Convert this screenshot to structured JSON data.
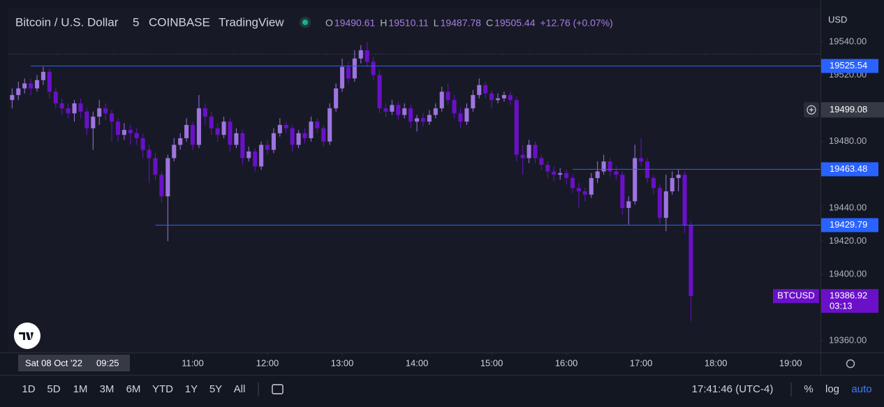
{
  "header": {
    "symbol": "Bitcoin / U.S. Dollar",
    "interval": "5",
    "exchange": "COINBASE",
    "source": "TradingView",
    "ohlc": [
      {
        "letter": "O",
        "text": "19490.61"
      },
      {
        "letter": "H",
        "text": "19510.11"
      },
      {
        "letter": "L",
        "text": "19487.78"
      },
      {
        "letter": "C",
        "text": "19505.44"
      }
    ],
    "change": "+12.76 (+0.07%)",
    "currency": "USD"
  },
  "chart_data": {
    "type": "candlestick",
    "up_color": "#9f74e0",
    "down_color": "#6a10c8",
    "x": [
      515,
      520,
      525,
      530,
      535,
      540,
      545,
      550,
      555,
      560,
      565,
      570,
      575,
      580,
      585,
      590,
      595,
      600,
      605,
      610,
      615,
      620,
      625,
      630,
      635,
      640,
      645,
      650,
      655,
      660,
      665,
      670,
      675,
      680,
      685,
      690,
      695,
      700,
      705,
      710,
      715,
      720,
      725,
      730,
      735,
      740,
      745,
      750,
      755,
      760,
      765,
      770,
      775,
      780,
      785,
      790,
      795,
      800,
      805,
      810,
      815,
      820,
      825,
      830,
      835,
      840,
      845,
      850,
      855,
      860,
      865,
      870,
      875,
      880,
      885,
      890,
      895,
      900,
      905,
      910,
      915,
      920,
      925,
      930,
      935,
      940,
      945,
      950,
      955,
      960,
      965,
      970,
      975,
      980,
      985,
      990,
      995,
      1000,
      1005,
      1010,
      1015,
      1020,
      1025,
      1030,
      1035,
      1040,
      1045,
      1050,
      1055,
      1060
    ],
    "open": [
      19505,
      19508,
      19512,
      19515,
      19512,
      19517,
      19522,
      19510,
      19503,
      19500,
      19497,
      19503,
      19498,
      19488,
      19495,
      19500,
      19497,
      19492,
      19484,
      19487,
      19485,
      19482,
      19475,
      19470,
      19460,
      19447,
      19470,
      19478,
      19482,
      19490,
      19478,
      19500,
      19495,
      19488,
      19484,
      19492,
      19478,
      19485,
      19470,
      19474,
      19465,
      19478,
      19475,
      19485,
      19490,
      19488,
      19478,
      19485,
      19482,
      19492,
      19488,
      19480,
      19500,
      19512,
      19525,
      19518,
      19530,
      19535,
      19528,
      19520,
      19500,
      19498,
      19502,
      19496,
      19500,
      19492,
      19494,
      19492,
      19496,
      19500,
      19510,
      19505,
      19497,
      19492,
      19500,
      19508,
      19514,
      19509,
      19505,
      19506,
      19508,
      19505,
      19472,
      19470,
      19478,
      19470,
      19466,
      19462,
      19460,
      19461,
      19458,
      19452,
      19450,
      19448,
      19458,
      19462,
      19468,
      19462,
      19460,
      19440,
      19444,
      19470,
      19468,
      19458,
      19452,
      19434,
      19450,
      19458,
      19460,
      19429.79
    ],
    "high": [
      19512,
      19516,
      19518,
      19518,
      19520,
      19525,
      19524,
      19512,
      19506,
      19503,
      19505,
      19506,
      19500,
      19498,
      19505,
      19503,
      19499,
      19494,
      19491,
      19490,
      19488,
      19485,
      19478,
      19473,
      19462,
      19472,
      19482,
      19485,
      19494,
      19492,
      19508,
      19503,
      19498,
      19491,
      19495,
      19494,
      19488,
      19487,
      19477,
      19476,
      19480,
      19481,
      19488,
      19494,
      19492,
      19490,
      19487,
      19488,
      19495,
      19494,
      19490,
      19503,
      19515,
      19530,
      19528,
      19535,
      19538,
      19540,
      19531,
      19523,
      19503,
      19505,
      19504,
      19503,
      19502,
      19496,
      19497,
      19499,
      19503,
      19513,
      19515,
      19508,
      19500,
      19503,
      19511,
      19518,
      19516,
      19511,
      19509,
      19510,
      19510,
      19507,
      19478,
      19481,
      19480,
      19472,
      19468,
      19465,
      19464,
      19463,
      19460,
      19455,
      19452,
      19461,
      19468,
      19472,
      19470,
      19465,
      19462,
      19447,
      19478,
      19482,
      19470,
      19460,
      19454,
      19460,
      19462,
      19463,
      19462,
      19432
    ],
    "low": [
      19500,
      19505,
      19509,
      19508,
      19510,
      19514,
      19506,
      19500,
      19496,
      19494,
      19492,
      19494,
      19484,
      19475,
      19490,
      19493,
      19480,
      19480,
      19481,
      19478,
      19478,
      19470,
      19455,
      19457,
      19443,
      19420,
      19468,
      19475,
      19480,
      19475,
      19476,
      19490,
      19484,
      19480,
      19482,
      19474,
      19476,
      19466,
      19468,
      19462,
      19463,
      19472,
      19473,
      19483,
      19485,
      19474,
      19476,
      19479,
      19480,
      19485,
      19477,
      19478,
      19498,
      19510,
      19515,
      19516,
      19527,
      19525,
      19517,
      19497,
      19495,
      19496,
      19493,
      19494,
      19488,
      19486,
      19489,
      19490,
      19494,
      19498,
      19502,
      19494,
      19488,
      19490,
      19498,
      19506,
      19506,
      19500,
      19503,
      19504,
      19502,
      19468,
      19460,
      19467,
      19467,
      19463,
      19458,
      19456,
      19457,
      19454,
      19449,
      19440,
      19444,
      19446,
      19455,
      19460,
      19459,
      19457,
      19436,
      19430,
      19442,
      19465,
      19455,
      19448,
      19430,
      19426,
      19448,
      19450,
      19425,
      19372
    ],
    "close": [
      19508,
      19512,
      19515,
      19512,
      19517,
      19522,
      19510,
      19503,
      19500,
      19497,
      19503,
      19498,
      19488,
      19495,
      19500,
      19497,
      19492,
      19484,
      19487,
      19485,
      19482,
      19475,
      19470,
      19460,
      19447,
      19470,
      19478,
      19482,
      19490,
      19478,
      19500,
      19495,
      19488,
      19484,
      19492,
      19478,
      19485,
      19470,
      19474,
      19465,
      19478,
      19475,
      19485,
      19490,
      19488,
      19478,
      19485,
      19482,
      19492,
      19488,
      19480,
      19500,
      19512,
      19525,
      19518,
      19530,
      19535,
      19528,
      19520,
      19500,
      19498,
      19502,
      19496,
      19500,
      19492,
      19494,
      19492,
      19496,
      19500,
      19510,
      19505,
      19497,
      19492,
      19500,
      19508,
      19514,
      19509,
      19505,
      19506,
      19508,
      19505,
      19472,
      19470,
      19478,
      19470,
      19466,
      19462,
      19460,
      19461,
      19458,
      19452,
      19450,
      19448,
      19458,
      19462,
      19468,
      19462,
      19460,
      19440,
      19444,
      19470,
      19468,
      19458,
      19452,
      19434,
      19450,
      19458,
      19460,
      19429.79,
      19386.92
    ],
    "xlim": [
      512,
      1164
    ],
    "xticks": [
      {
        "value": 660,
        "label": "11:00"
      },
      {
        "value": 720,
        "label": "12:00"
      },
      {
        "value": 780,
        "label": "13:00"
      },
      {
        "value": 840,
        "label": "14:00"
      },
      {
        "value": 900,
        "label": "15:00"
      },
      {
        "value": 960,
        "label": "16:00"
      },
      {
        "value": 1020,
        "label": "17:00"
      },
      {
        "value": 1080,
        "label": "18:00"
      },
      {
        "value": 1140,
        "label": "19:00"
      }
    ],
    "ylim": [
      19352.9,
      19560.2
    ],
    "yticks": [
      {
        "value": 19360,
        "label": "19360.00"
      },
      {
        "value": 19400,
        "label": "19400.00"
      },
      {
        "value": 19420,
        "label": "19420.00"
      },
      {
        "value": 19440,
        "label": "19440.00"
      },
      {
        "value": 19480,
        "label": "19480.00"
      },
      {
        "value": 19520,
        "label": "19520.00"
      },
      {
        "value": 19540,
        "label": "19540.00"
      }
    ],
    "hlines": [
      {
        "value": 19525.54,
        "from": 530
      },
      {
        "value": 19463.48,
        "from": 965
      },
      {
        "value": 19429.79,
        "from": 630
      }
    ],
    "hline_color": "#2962ff",
    "crosshair": {
      "value": 19499.08,
      "time": "Sat 08 Oct '22",
      "clock": "09:25"
    },
    "last": {
      "symbol": "BTCUSD",
      "value": 19386.92,
      "countdown": "03:13"
    }
  },
  "toolbar": {
    "ranges": [
      "1D",
      "5D",
      "1M",
      "3M",
      "6M",
      "YTD",
      "1Y",
      "5Y",
      "All"
    ],
    "clock": "17:41:46 (UTC-4)",
    "percent": "%",
    "log": "log",
    "auto": "auto"
  }
}
